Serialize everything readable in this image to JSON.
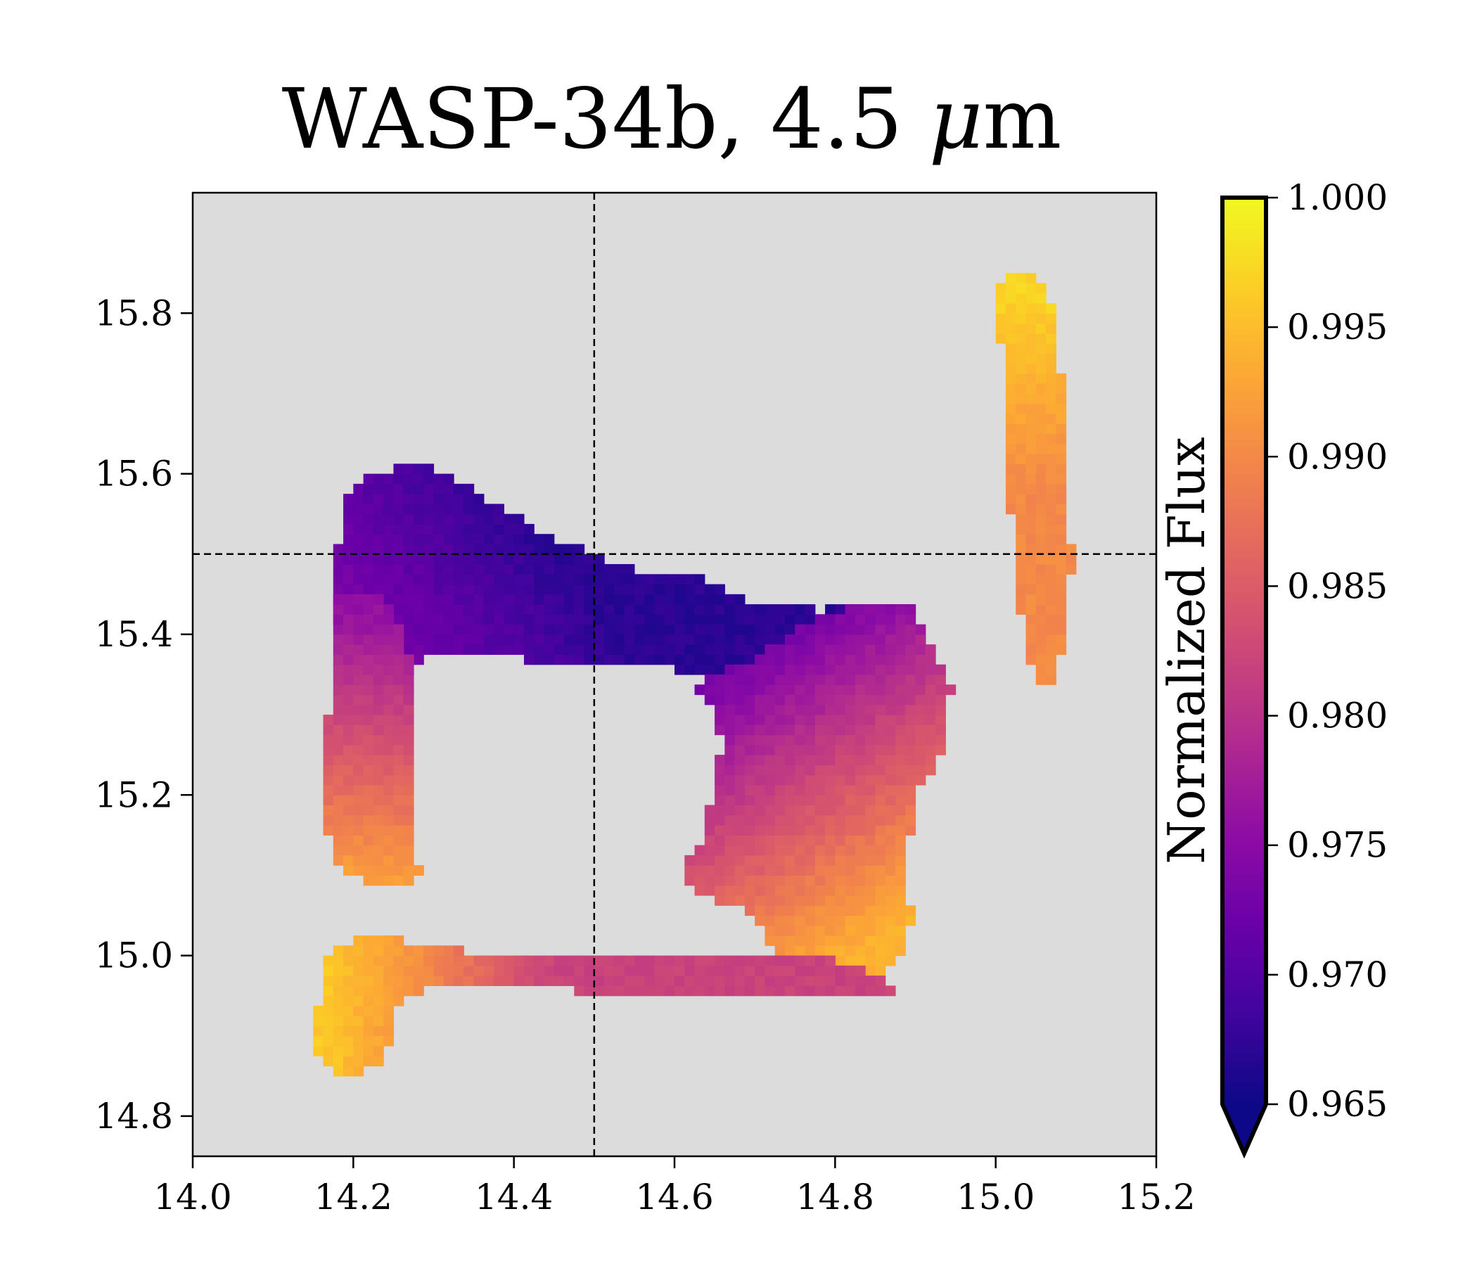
{
  "chart_data": {
    "type": "heatmap",
    "title": "WASP-34b, 4.5 μm",
    "title_parts": {
      "main": "WASP-34b, 4.5 ",
      "mu": "μ",
      "unit": "m"
    },
    "xlabel": "",
    "ylabel": "",
    "xlim": [
      14.0,
      15.2
    ],
    "ylim": [
      14.75,
      15.95
    ],
    "x_ticks": [
      "14.0",
      "14.2",
      "14.4",
      "14.6",
      "14.8",
      "15.0",
      "15.2"
    ],
    "y_ticks": [
      "14.8",
      "15.0",
      "15.2",
      "15.4",
      "15.6",
      "15.8"
    ],
    "reference_lines": {
      "x": 14.5,
      "y": 15.5,
      "style": "dashed"
    },
    "grid": false,
    "background_color": "#dcdcdc",
    "cell_size": 0.0125,
    "colormap": "plasma",
    "colorbar": {
      "label": "Normalized Flux",
      "min": 0.965,
      "max": 1.0,
      "ticks": [
        "0.965",
        "0.970",
        "0.975",
        "0.980",
        "0.985",
        "0.990",
        "0.995",
        "1.000"
      ],
      "extend": "min"
    },
    "regions": [
      {
        "name": "upper band",
        "polygon": [
          [
            14.19,
            15.57
          ],
          [
            14.22,
            15.6
          ],
          [
            14.26,
            15.61
          ],
          [
            14.3,
            15.61
          ],
          [
            14.35,
            15.58
          ],
          [
            14.4,
            15.55
          ],
          [
            14.45,
            15.52
          ],
          [
            14.5,
            15.5
          ],
          [
            14.55,
            15.48
          ],
          [
            14.63,
            15.47
          ],
          [
            14.66,
            15.46
          ],
          [
            14.7,
            15.44
          ],
          [
            14.78,
            15.43
          ],
          [
            14.87,
            15.44
          ],
          [
            14.9,
            15.44
          ],
          [
            14.91,
            15.37
          ],
          [
            14.9,
            15.3
          ],
          [
            14.82,
            15.3
          ],
          [
            14.75,
            15.3
          ],
          [
            14.7,
            15.33
          ],
          [
            14.65,
            15.35
          ],
          [
            14.58,
            15.36
          ],
          [
            14.5,
            15.36
          ],
          [
            14.4,
            15.37
          ],
          [
            14.33,
            15.38
          ],
          [
            14.29,
            15.37
          ],
          [
            14.26,
            15.34
          ],
          [
            14.24,
            15.3
          ],
          [
            14.2,
            15.35
          ],
          [
            14.18,
            15.42
          ],
          [
            14.18,
            15.5
          ]
        ],
        "gradient": {
          "from": [
            14.45,
            15.5
          ],
          "to": [
            14.18,
            15.3
          ],
          "v0": 0.967,
          "v1": 0.976
        }
      },
      {
        "name": "left arm",
        "polygon": [
          [
            14.18,
            15.45
          ],
          [
            14.24,
            15.45
          ],
          [
            14.28,
            15.35
          ],
          [
            14.28,
            15.3
          ],
          [
            14.275,
            15.2
          ],
          [
            14.28,
            15.11
          ],
          [
            14.29,
            15.1
          ],
          [
            14.27,
            15.09
          ],
          [
            14.23,
            15.09
          ],
          [
            14.2,
            15.1
          ],
          [
            14.175,
            15.12
          ],
          [
            14.165,
            15.17
          ],
          [
            14.16,
            15.25
          ],
          [
            14.17,
            15.3
          ],
          [
            14.175,
            15.38
          ]
        ],
        "gradient": {
          "from": [
            14.25,
            15.42
          ],
          "to": [
            14.22,
            15.1
          ],
          "v0": 0.976,
          "v1": 0.992
        }
      },
      {
        "name": "right lobe",
        "polygon": [
          [
            14.74,
            15.4
          ],
          [
            14.8,
            15.43
          ],
          [
            14.88,
            15.44
          ],
          [
            14.9,
            15.44
          ],
          [
            14.91,
            15.4
          ],
          [
            14.925,
            15.37
          ],
          [
            14.945,
            15.34
          ],
          [
            14.94,
            15.28
          ],
          [
            14.93,
            15.24
          ],
          [
            14.9,
            15.2
          ],
          [
            14.89,
            15.12
          ],
          [
            14.895,
            15.04
          ],
          [
            14.88,
            15.0
          ],
          [
            14.86,
            14.98
          ],
          [
            14.82,
            14.97
          ],
          [
            14.78,
            14.97
          ],
          [
            14.73,
            15.0
          ],
          [
            14.7,
            15.05
          ],
          [
            14.65,
            15.07
          ],
          [
            14.61,
            15.09
          ],
          [
            14.61,
            15.12
          ],
          [
            14.63,
            15.13
          ],
          [
            14.64,
            15.17
          ],
          [
            14.65,
            15.22
          ],
          [
            14.66,
            15.26
          ],
          [
            14.65,
            15.3
          ],
          [
            14.63,
            15.33
          ],
          [
            14.66,
            15.36
          ],
          [
            14.7,
            15.37
          ]
        ],
        "gradient": {
          "from": [
            14.67,
            15.38
          ],
          "to": [
            14.88,
            15.04
          ],
          "v0": 0.972,
          "v1": 0.994
        }
      },
      {
        "name": "bottom band",
        "polygon": [
          [
            14.17,
            15.01
          ],
          [
            14.2,
            15.02
          ],
          [
            14.26,
            15.02
          ],
          [
            14.3,
            15.01
          ],
          [
            14.4,
            15.0
          ],
          [
            14.5,
            15.0
          ],
          [
            14.6,
            15.0
          ],
          [
            14.7,
            15.0
          ],
          [
            14.78,
            15.0
          ],
          [
            14.82,
            14.99
          ],
          [
            14.86,
            14.975
          ],
          [
            14.87,
            14.955
          ],
          [
            14.82,
            14.95
          ],
          [
            14.75,
            14.945
          ],
          [
            14.6,
            14.955
          ],
          [
            14.5,
            14.955
          ],
          [
            14.4,
            14.96
          ],
          [
            14.3,
            14.96
          ],
          [
            14.265,
            14.95
          ],
          [
            14.255,
            14.93
          ],
          [
            14.25,
            14.9
          ],
          [
            14.24,
            14.875
          ],
          [
            14.21,
            14.85
          ],
          [
            14.18,
            14.85
          ],
          [
            14.155,
            14.87
          ],
          [
            14.155,
            14.92
          ],
          [
            14.16,
            14.97
          ]
        ],
        "gradient": {
          "from": [
            14.17,
            14.99
          ],
          "to": [
            14.45,
            14.985
          ],
          "v0": 0.996,
          "v1": 0.982
        }
      },
      {
        "name": "right streak",
        "polygon": [
          [
            15.005,
            15.84
          ],
          [
            15.03,
            15.85
          ],
          [
            15.06,
            15.84
          ],
          [
            15.075,
            15.8
          ],
          [
            15.08,
            15.75
          ],
          [
            15.085,
            15.65
          ],
          [
            15.09,
            15.55
          ],
          [
            15.095,
            15.5
          ],
          [
            15.09,
            15.42
          ],
          [
            15.08,
            15.37
          ],
          [
            15.07,
            15.34
          ],
          [
            15.05,
            15.34
          ],
          [
            15.04,
            15.37
          ],
          [
            15.03,
            15.44
          ],
          [
            15.02,
            15.52
          ],
          [
            15.015,
            15.62
          ],
          [
            15.01,
            15.7
          ],
          [
            15.005,
            15.78
          ]
        ],
        "gradient": {
          "from": [
            15.04,
            15.82
          ],
          "to": [
            15.05,
            15.58
          ],
          "v0": 0.997,
          "v1": 0.99
        }
      }
    ]
  }
}
